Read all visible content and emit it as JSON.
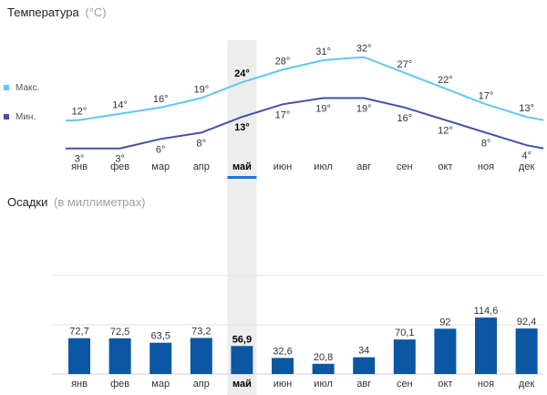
{
  "temperature": {
    "title": "Температура",
    "title_unit": "(°C)",
    "legend": [
      {
        "label": "Макс.",
        "color": "#5fc8f0"
      },
      {
        "label": "Мин.",
        "color": "#4350a8"
      }
    ]
  },
  "precipitation": {
    "title": "Осадки",
    "title_unit": "(в миллиметрах)"
  },
  "selected_month_index": 4,
  "chart_data": [
    {
      "type": "line",
      "title": "Температура",
      "categories": [
        "янв",
        "фев",
        "мар",
        "апр",
        "май",
        "июн",
        "июл",
        "авг",
        "сен",
        "окт",
        "ноя",
        "дек"
      ],
      "series": [
        {
          "name": "Макс.",
          "color": "#5fc8f0",
          "values": [
            12,
            14,
            16,
            19,
            24,
            28,
            31,
            32,
            27,
            22,
            17,
            13
          ],
          "labels": [
            "12°",
            "14°",
            "16°",
            "19°",
            "24°",
            "28°",
            "31°",
            "32°",
            "27°",
            "22°",
            "17°",
            "13°"
          ]
        },
        {
          "name": "Мин.",
          "color": "#4350a8",
          "values": [
            3,
            3,
            6,
            8,
            13,
            17,
            19,
            19,
            16,
            12,
            8,
            4
          ],
          "labels": [
            "3°",
            "3°",
            "6°",
            "8°",
            "13°",
            "17°",
            "19°",
            "19°",
            "16°",
            "12°",
            "8°",
            "4°"
          ]
        }
      ],
      "ylim": [
        0,
        36
      ],
      "grid": false,
      "legend": "left"
    },
    {
      "type": "bar",
      "title": "Осадки",
      "categories": [
        "янв",
        "фев",
        "мар",
        "апр",
        "май",
        "июн",
        "июл",
        "авг",
        "сен",
        "окт",
        "ноя",
        "дек"
      ],
      "values": [
        72.7,
        72.5,
        63.5,
        73.2,
        56.9,
        32.6,
        20.8,
        34,
        70.1,
        92,
        114.6,
        92.4
      ],
      "labels": [
        "72,7",
        "72,5",
        "63,5",
        "73,2",
        "56,9",
        "32,6",
        "20,8",
        "34",
        "70,1",
        "92",
        "114,6",
        "92,4"
      ],
      "color": "#0b57a4",
      "ylim": [
        0,
        250
      ],
      "gridlines": [
        0,
        100,
        200
      ],
      "grid": true
    }
  ]
}
